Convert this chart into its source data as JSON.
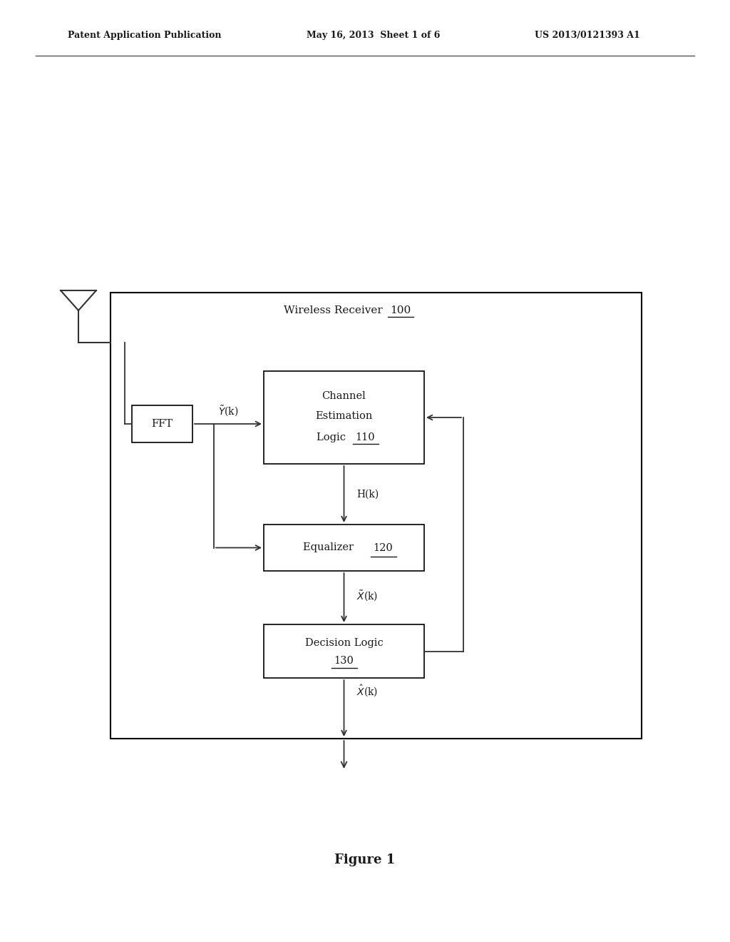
{
  "bg_color": "#ffffff",
  "text_color": "#1a1a1a",
  "header_left": "Patent Application Publication",
  "header_center": "May 16, 2013  Sheet 1 of 6",
  "header_right": "US 2013/0121393 A1",
  "figure_label": "Figure 1",
  "receiver_label": "Wireless Receiver",
  "receiver_number": "100",
  "fft_label": "FFT",
  "cel_label1": "Channel",
  "cel_label2": "Estimation",
  "cel_label3": "Logic",
  "cel_number": "110",
  "eq_label": "Equalizer",
  "eq_number": "120",
  "dl_label": "Decision Logic",
  "dl_number": "130",
  "box_color": "#000000",
  "box_fill": "#ffffff",
  "line_color": "#333333",
  "arrow_color": "#333333"
}
